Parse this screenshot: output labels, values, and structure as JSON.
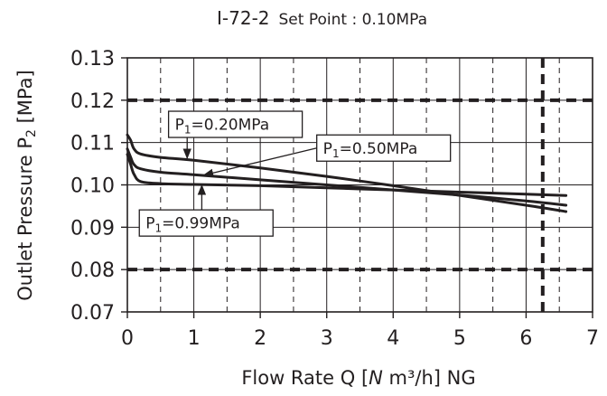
{
  "chart_data": {
    "type": "line",
    "title": "I-72-2",
    "subtitle": "Set Point : 0.10MPa",
    "xlabel_parts": [
      "Flow  Rate  Q  [",
      "N",
      " m³/h] NG"
    ],
    "ylabel_parts": [
      "Outlet  Pressure  P",
      "2",
      " [MPa]"
    ],
    "xlim": [
      0,
      7
    ],
    "ylim": [
      0.07,
      0.13
    ],
    "x_ticks": [
      0,
      1,
      2,
      3,
      4,
      5,
      6,
      7
    ],
    "x_tick_labels": [
      "0",
      "1",
      "2",
      "3",
      "4",
      "5",
      "6",
      "7"
    ],
    "y_ticks": [
      0.07,
      0.08,
      0.09,
      0.1,
      0.11,
      0.12,
      0.13
    ],
    "y_tick_labels": [
      "0.07",
      "0.08",
      "0.09",
      "0.10",
      "0.11",
      "0.12",
      "0.13"
    ],
    "x_minor_grid": [
      0.5,
      1.5,
      2.5,
      3.5,
      4.5,
      5.5,
      6.5
    ],
    "grid": true,
    "reference_lines": [
      {
        "orientation": "horizontal",
        "value": 0.12
      },
      {
        "orientation": "horizontal",
        "value": 0.08
      },
      {
        "orientation": "vertical",
        "value": 6.25
      }
    ],
    "series": [
      {
        "label_parts": [
          "P",
          "1",
          "=0.20MPa"
        ],
        "x": [
          0.0,
          0.05,
          0.1,
          0.2,
          0.5,
          1,
          2,
          3,
          4,
          5,
          6,
          6.6
        ],
        "y": [
          0.1118,
          0.1105,
          0.1085,
          0.1073,
          0.1065,
          0.1058,
          0.104,
          0.102,
          0.0998,
          0.0975,
          0.0952,
          0.0937
        ],
        "callout": {
          "anchor_x": 0.9,
          "anchor_y": 0.1063,
          "box_x": 0.62,
          "box_y": 0.1143
        }
      },
      {
        "label_parts": [
          "P",
          "1",
          "=0.50MPa"
        ],
        "x": [
          0.0,
          0.05,
          0.1,
          0.2,
          0.5,
          1,
          2,
          3,
          4,
          5,
          6,
          6.6
        ],
        "y": [
          0.1085,
          0.1065,
          0.1048,
          0.1038,
          0.103,
          0.1024,
          0.1012,
          0.1,
          0.0988,
          0.0976,
          0.0962,
          0.0952
        ],
        "callout": {
          "anchor_x": 1.15,
          "anchor_y": 0.1023,
          "box_x": 2.85,
          "box_y": 0.1087
        }
      },
      {
        "label_parts": [
          "P",
          "1",
          "=0.99MPa"
        ],
        "x": [
          0.0,
          0.05,
          0.1,
          0.2,
          0.5,
          1,
          2,
          3,
          4,
          5,
          6,
          6.6
        ],
        "y": [
          0.1072,
          0.1048,
          0.1025,
          0.1008,
          0.1003,
          0.1001,
          0.0998,
          0.0993,
          0.0988,
          0.0983,
          0.0978,
          0.0975
        ],
        "callout": {
          "anchor_x": 1.12,
          "anchor_y": 0.0999,
          "box_x": 0.18,
          "box_y": 0.091
        }
      }
    ]
  }
}
